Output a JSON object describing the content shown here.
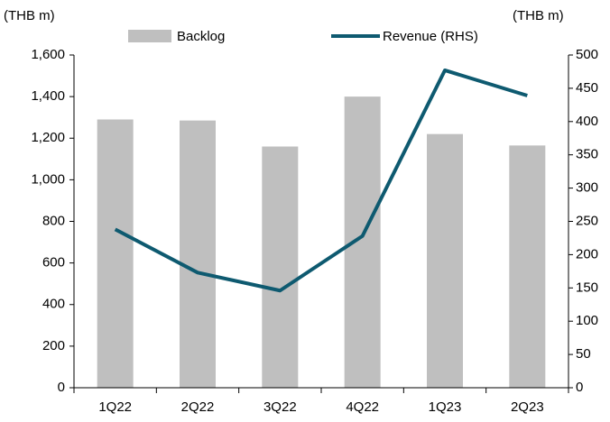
{
  "chart_data": {
    "type": "bar-line",
    "y_axis_label": "(THB m)",
    "y2_axis_label": "(THB m)",
    "categories": [
      "1Q22",
      "2Q22",
      "3Q22",
      "4Q22",
      "1Q23",
      "2Q23"
    ],
    "series": [
      {
        "name": "Backlog",
        "type": "bar",
        "color": "#bfbfbf",
        "values": [
          1290,
          1285,
          1160,
          1400,
          1220,
          1165
        ]
      },
      {
        "name": "Revenue (RHS)",
        "type": "line",
        "axis": "y2",
        "color": "#0e5a70",
        "values": [
          238,
          173,
          146,
          228,
          477,
          439
        ]
      }
    ],
    "ylim": [
      0,
      1600
    ],
    "yticks": [
      0,
      200,
      400,
      600,
      800,
      {
        "value": 1000,
        "label": "1,000"
      },
      {
        "value": 1200,
        "label": "1,200"
      },
      {
        "value": 1400,
        "label": "1,400"
      },
      {
        "value": 1600,
        "label": "1,600"
      }
    ],
    "y2lim": [
      0,
      500
    ],
    "y2ticks": [
      0,
      50,
      100,
      150,
      200,
      250,
      300,
      350,
      400,
      450,
      500
    ],
    "legend": "top",
    "grid": false
  }
}
